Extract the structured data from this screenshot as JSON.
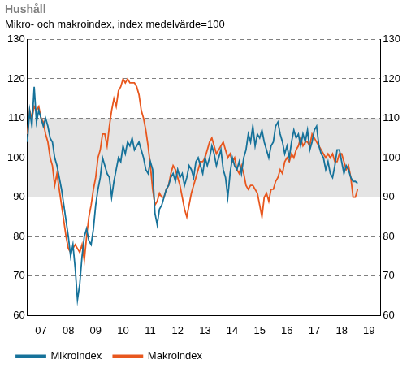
{
  "chart_data": {
    "type": "line",
    "title": "Hushåll",
    "subtitle": "Mikro- och makroindex, index medelvärde=100",
    "categories": [
      null,
      null,
      null,
      null,
      null,
      null,
      "07",
      null,
      null,
      null,
      null,
      null,
      null,
      null,
      null,
      null,
      null,
      null,
      "08",
      null,
      null,
      null,
      null,
      null,
      null,
      null,
      null,
      null,
      null,
      null,
      "09",
      null,
      null,
      null,
      null,
      null,
      null,
      null,
      null,
      null,
      null,
      null,
      "10",
      null,
      null,
      null,
      null,
      null,
      null,
      null,
      null,
      null,
      null,
      null,
      "11",
      null,
      null,
      null,
      null,
      null,
      null,
      null,
      null,
      null,
      null,
      null,
      "12",
      null,
      null,
      null,
      null,
      null,
      null,
      null,
      null,
      null,
      null,
      null,
      "13",
      null,
      null,
      null,
      null,
      null,
      null,
      null,
      null,
      null,
      null,
      null,
      "14",
      null,
      null,
      null,
      null,
      null,
      null,
      null,
      null,
      null,
      null,
      null,
      "15",
      null,
      null,
      null,
      null,
      null,
      null,
      null,
      null,
      null,
      null,
      null,
      "16",
      null,
      null,
      null,
      null,
      null,
      null,
      null,
      null,
      null,
      null,
      null,
      "17",
      null,
      null,
      null,
      null,
      null,
      null,
      null,
      null,
      null,
      null,
      null,
      "18",
      null,
      null,
      null,
      null,
      null,
      null,
      null,
      null,
      null,
      null,
      null,
      "19",
      null,
      null,
      null,
      null,
      null
    ],
    "series": [
      {
        "name": "Mikroindex",
        "color": "#16729a",
        "values": [
          104,
          112,
          108,
          118,
          109,
          112,
          110,
          108,
          110,
          108,
          105,
          104,
          100,
          98,
          95,
          92,
          88,
          84,
          80,
          75,
          78,
          72,
          64,
          68,
          75,
          80,
          82,
          79,
          78,
          82,
          88,
          92,
          95,
          100,
          98,
          96,
          95,
          90,
          94,
          97,
          100,
          99,
          103,
          101,
          104,
          103,
          105,
          102,
          103,
          104,
          102,
          100,
          97,
          96,
          99,
          97,
          86,
          83,
          87,
          88,
          90,
          92,
          93,
          95,
          96,
          94,
          97,
          95,
          96,
          93,
          95,
          98,
          97,
          95,
          99,
          100,
          98,
          96,
          100,
          98,
          100,
          103,
          101,
          98,
          100,
          102,
          97,
          95,
          90,
          96,
          100,
          98,
          97,
          99,
          96,
          100,
          102,
          106,
          104,
          108,
          103,
          106,
          105,
          107,
          104,
          102,
          100,
          103,
          104,
          108,
          109,
          106,
          104,
          101,
          103,
          100,
          104,
          107,
          105,
          106,
          103,
          106,
          104,
          107,
          102,
          104,
          107,
          108,
          103,
          101,
          100,
          97,
          99,
          96,
          95,
          98,
          102,
          102,
          99,
          96,
          98,
          97,
          95,
          94,
          94,
          93.5,
          null,
          null,
          null,
          null,
          null,
          null,
          null,
          null,
          null,
          null
        ]
      },
      {
        "name": "Makroindex",
        "color": "#e8571e",
        "values": [
          106,
          112,
          110,
          113,
          112,
          113,
          110,
          109,
          106,
          104,
          100,
          98,
          93,
          96,
          92,
          88,
          84,
          80,
          77,
          76,
          77,
          78,
          77,
          76,
          78,
          74,
          80,
          85,
          88,
          92,
          95,
          100,
          102,
          106,
          106,
          103,
          108,
          112,
          115,
          113,
          117,
          118,
          120,
          119,
          120,
          119,
          119,
          119,
          118,
          116,
          112,
          110,
          107,
          103,
          98,
          92,
          88,
          89,
          91,
          90,
          90,
          92,
          93,
          96,
          98,
          97,
          95,
          93,
          90,
          87,
          85,
          88,
          91,
          93,
          95,
          97,
          99,
          99,
          100,
          102,
          104,
          105,
          103,
          101,
          102,
          103,
          104,
          102,
          100,
          101,
          99,
          100,
          97,
          96,
          98,
          96,
          93,
          92,
          93,
          93,
          92,
          91,
          88,
          85,
          90,
          91,
          89,
          92,
          92,
          94,
          95,
          97,
          96,
          99,
          100,
          99,
          101,
          100,
          102,
          103,
          105,
          103,
          104,
          104,
          103,
          106,
          105,
          104,
          103,
          102,
          101,
          100,
          101,
          100,
          101,
          99,
          99,
          101,
          101,
          99,
          97,
          98,
          95,
          90,
          90,
          92,
          null,
          null,
          null,
          null,
          null,
          null,
          null,
          null,
          null,
          null
        ]
      }
    ],
    "ylim": [
      60,
      130
    ],
    "yticks": [
      60,
      70,
      80,
      90,
      100,
      110,
      120,
      130
    ],
    "shaded_range": [
      90,
      110
    ],
    "grid": true,
    "legend": "bottom"
  }
}
